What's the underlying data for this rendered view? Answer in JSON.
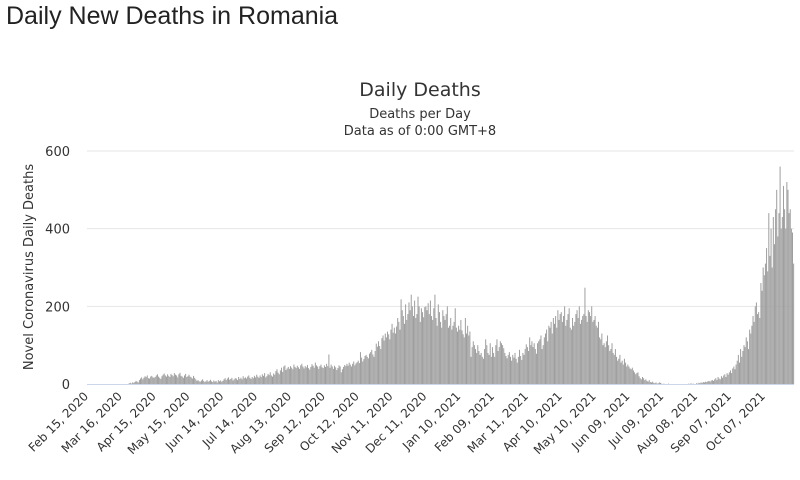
{
  "page": {
    "title": "Daily New Deaths in Romania"
  },
  "chart_data": {
    "type": "bar",
    "title": "Daily Deaths",
    "subtitle": [
      "Deaths per Day",
      "Data as of 0:00 GMT+8"
    ],
    "xlabel": "",
    "ylabel": "Novel Coronavirus Daily Deaths",
    "ylim": [
      0,
      600
    ],
    "yticks": [
      "0",
      "200",
      "400",
      "600"
    ],
    "ytick_values": [
      0,
      200,
      400,
      600
    ],
    "start_date": "Feb 15, 2020",
    "interval_days": 1,
    "xticks": [
      "Feb 15, 2020",
      "Mar 16, 2020",
      "Apr 15, 2020",
      "May 15, 2020",
      "Jun 14, 2020",
      "Jul 14, 2020",
      "Aug 13, 2020",
      "Sep 12, 2020",
      "Oct 12, 2020",
      "Nov 11, 2020",
      "Dec 11, 2020",
      "Jan 10, 2021",
      "Feb 09, 2021",
      "Mar 11, 2021",
      "Apr 10, 2021",
      "May 10, 2021",
      "Jun 09, 2021",
      "Jul 09, 2021",
      "Aug 08, 2021",
      "Sep 07, 2021",
      "Oct 07, 2021"
    ],
    "xtick_interval_days": 30,
    "grid": true,
    "colors": {
      "bar": "#9e9e9e",
      "grid": "#e6e6e6",
      "axis": "#ccd6eb",
      "text": "#333333"
    },
    "values": [
      0,
      0,
      0,
      0,
      0,
      0,
      0,
      0,
      0,
      0,
      0,
      0,
      0,
      0,
      0,
      0,
      0,
      0,
      0,
      0,
      0,
      0,
      0,
      0,
      0,
      0,
      0,
      0,
      0,
      0,
      0,
      0,
      0,
      0,
      0,
      0,
      0,
      2,
      3,
      1,
      4,
      3,
      5,
      8,
      6,
      4,
      10,
      14,
      17,
      12,
      16,
      20,
      18,
      22,
      15,
      14,
      19,
      21,
      17,
      16,
      18,
      22,
      25,
      19,
      16,
      13,
      20,
      24,
      27,
      22,
      19,
      25,
      21,
      18,
      26,
      23,
      20,
      28,
      24,
      22,
      17,
      25,
      29,
      21,
      19,
      16,
      22,
      26,
      18,
      20,
      24,
      19,
      17,
      14,
      21,
      16,
      12,
      8,
      10,
      7,
      6,
      9,
      12,
      8,
      5,
      7,
      10,
      6,
      8,
      11,
      7,
      5,
      9,
      6,
      8,
      4,
      10,
      7,
      9,
      6,
      8,
      12,
      15,
      10,
      14,
      17,
      11,
      13,
      16,
      9,
      12,
      15,
      14,
      10,
      18,
      13,
      16,
      12,
      20,
      15,
      17,
      14,
      19,
      22,
      16,
      13,
      18,
      15,
      21,
      17,
      24,
      19,
      16,
      22,
      18,
      25,
      21,
      28,
      17,
      20,
      26,
      23,
      30,
      22,
      19,
      27,
      24,
      33,
      38,
      29,
      25,
      35,
      42,
      31,
      45,
      48,
      36,
      40,
      44,
      39,
      46,
      42,
      38,
      50,
      44,
      41,
      47,
      43,
      39,
      48,
      52,
      45,
      40,
      46,
      43,
      49,
      41,
      37,
      44,
      51,
      47,
      42,
      55,
      48,
      45,
      39,
      46,
      50,
      43,
      41,
      48,
      44,
      52,
      46,
      76,
      42,
      50,
      45,
      39,
      47,
      43,
      36,
      41,
      48,
      45,
      30,
      38,
      44,
      49,
      46,
      52,
      47,
      55,
      50,
      45,
      52,
      58,
      48,
      53,
      56,
      60,
      54,
      82,
      68,
      58,
      64,
      72,
      75,
      70,
      66,
      78,
      82,
      88,
      76,
      70,
      85,
      104,
      96,
      110,
      98,
      90,
      118,
      125,
      112,
      130,
      120,
      135,
      128,
      115,
      140,
      155,
      132,
      145,
      130,
      148,
      170,
      160,
      140,
      218,
      190,
      175,
      155,
      205,
      165,
      180,
      210,
      190,
      230,
      200,
      175,
      215,
      170,
      180,
      225,
      200,
      160,
      195,
      185,
      172,
      198,
      200,
      190,
      208,
      180,
      215,
      175,
      165,
      195,
      230,
      170,
      150,
      205,
      185,
      160,
      145,
      190,
      175,
      165,
      180,
      200,
      145,
      150,
      170,
      140,
      150,
      160,
      195,
      145,
      135,
      150,
      140,
      165,
      138,
      128,
      120,
      170,
      130,
      150,
      125,
      135,
      70,
      95,
      110,
      100,
      90,
      80,
      100,
      85,
      75,
      80,
      70,
      65,
      90,
      115,
      100,
      80,
      75,
      105,
      70,
      95,
      80,
      70,
      100,
      115,
      85,
      95,
      110,
      105,
      100,
      92,
      80,
      72,
      66,
      75,
      82,
      70,
      60,
      75,
      68,
      80,
      65,
      55,
      70,
      88,
      72,
      62,
      80,
      75,
      90,
      102,
      95,
      85,
      120,
      100,
      110,
      95,
      105,
      90,
      78,
      105,
      110,
      115,
      125,
      90,
      100,
      120,
      130,
      140,
      110,
      150,
      145,
      160,
      130,
      170,
      155,
      175,
      145,
      190,
      165,
      180,
      185,
      160,
      175,
      200,
      150,
      165,
      180,
      195,
      145,
      140,
      170,
      150,
      160,
      180,
      190,
      170,
      200,
      155,
      165,
      175,
      180,
      248,
      175,
      160,
      190,
      185,
      175,
      200,
      160,
      165,
      175,
      150,
      145,
      160,
      120,
      115,
      130,
      100,
      105,
      95,
      110,
      125,
      100,
      85,
      90,
      105,
      80,
      75,
      90,
      70,
      60,
      65,
      75,
      55,
      60,
      50,
      65,
      55,
      45,
      50,
      45,
      40,
      38,
      42,
      35,
      30,
      25,
      28,
      30,
      20,
      15,
      12,
      18,
      15,
      10,
      12,
      8,
      6,
      10,
      5,
      4,
      6,
      3,
      2,
      4,
      1,
      2,
      4,
      3,
      1,
      0,
      1,
      0,
      0,
      0,
      1,
      0,
      0,
      0,
      0,
      0,
      0,
      0,
      0,
      0,
      0,
      0,
      0,
      0,
      0,
      0,
      0,
      0,
      1,
      0,
      2,
      0,
      1,
      0,
      0,
      2,
      1,
      3,
      2,
      4,
      3,
      5,
      4,
      6,
      5,
      7,
      8,
      6,
      9,
      10,
      8,
      12,
      15,
      10,
      18,
      14,
      12,
      20,
      16,
      22,
      25,
      18,
      28,
      24,
      30,
      35,
      28,
      40,
      45,
      38,
      50,
      60,
      75,
      55,
      90,
      70,
      85,
      100,
      95,
      120,
      110,
      90,
      140,
      130,
      150,
      175,
      160,
      200,
      210,
      180,
      185,
      170,
      260,
      240,
      300,
      280,
      310,
      350,
      290,
      440,
      330,
      400,
      300,
      430,
      360,
      450,
      500,
      380,
      440,
      560,
      400,
      430,
      510,
      450,
      400,
      520,
      500,
      440,
      450,
      400,
      390,
      310
    ]
  }
}
